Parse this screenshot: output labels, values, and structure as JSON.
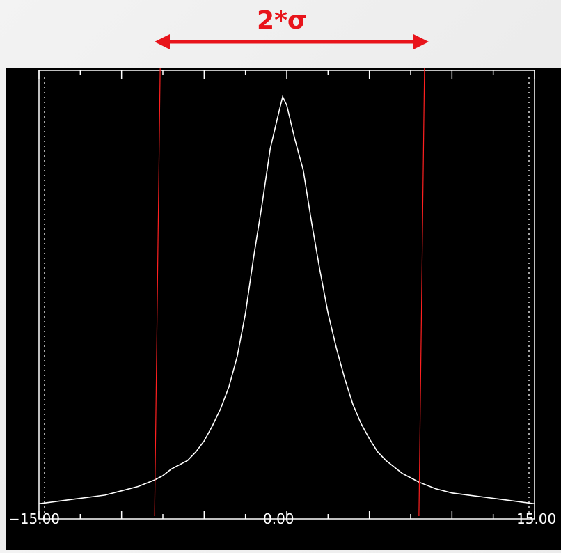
{
  "annotation": {
    "label": "2*σ",
    "color": "#e8141b"
  },
  "chart_data": {
    "type": "line",
    "title": "",
    "xlabel": "",
    "ylabel": "",
    "xlim": [
      -15.0,
      15.0
    ],
    "ylim": [
      0,
      1.0
    ],
    "x_tick_labels": [
      "−15.00",
      "0.00",
      "15.00"
    ],
    "grid": false,
    "legend": "none",
    "background": "#000000",
    "line_color": "#ffffff",
    "marker_color": "#ff2020",
    "series": [
      {
        "x": [
          -15,
          -14,
          -13,
          -12,
          -11,
          -10,
          -9,
          -8,
          -7.5,
          -7,
          -6.5,
          -6,
          -5.5,
          -5,
          -4.5,
          -4,
          -3.5,
          -3,
          -2.5,
          -2,
          -1.5,
          -1,
          -0.5,
          -0.25,
          0,
          0.25,
          0.5,
          1,
          1.5,
          2,
          2.5,
          3,
          3.5,
          4,
          4.5,
          5,
          5.5,
          6,
          6.5,
          7,
          7.5,
          8,
          9,
          10,
          11,
          12,
          13,
          14,
          15
        ],
        "y": [
          0.03,
          0.035,
          0.04,
          0.045,
          0.05,
          0.06,
          0.07,
          0.085,
          0.095,
          0.11,
          0.12,
          0.13,
          0.15,
          0.175,
          0.21,
          0.25,
          0.3,
          0.37,
          0.47,
          0.6,
          0.72,
          0.85,
          0.93,
          0.97,
          0.95,
          0.91,
          0.87,
          0.8,
          0.68,
          0.57,
          0.47,
          0.39,
          0.32,
          0.26,
          0.215,
          0.18,
          0.15,
          0.13,
          0.115,
          0.1,
          0.09,
          0.08,
          0.065,
          0.055,
          0.05,
          0.045,
          0.04,
          0.035,
          0.03
        ]
      }
    ],
    "vertical_markers": [
      -8.0,
      8.0
    ],
    "dotted_edges": [
      -15.0,
      15.0
    ]
  }
}
